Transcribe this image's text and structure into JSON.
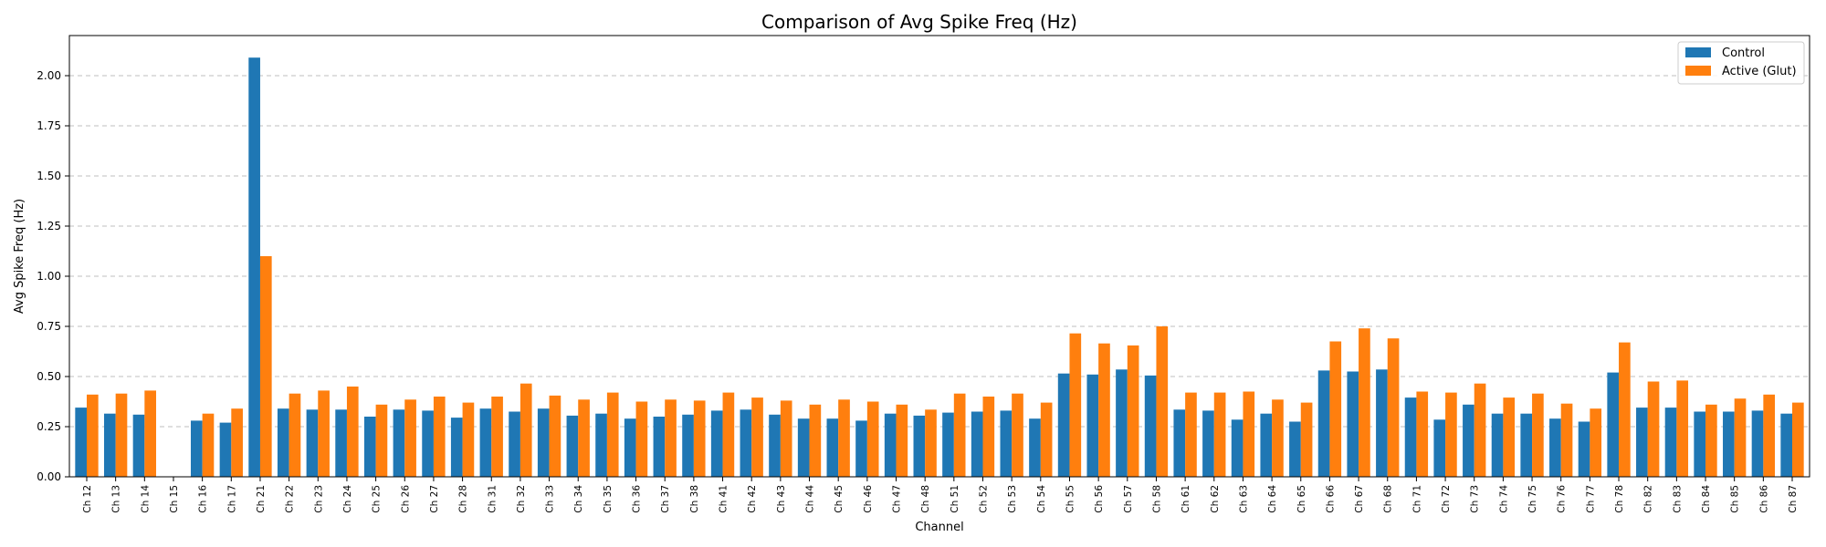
{
  "chart_data": {
    "type": "bar",
    "title": "Comparison of Avg Spike Freq (Hz)",
    "xlabel": "Channel",
    "ylabel": "Avg Spike Freq (Hz)",
    "ylim": [
      0,
      2.2
    ],
    "yticks": [
      0.0,
      0.25,
      0.5,
      0.75,
      1.0,
      1.25,
      1.5,
      1.75,
      2.0
    ],
    "ytick_labels": [
      "0.00",
      "0.25",
      "0.50",
      "0.75",
      "1.00",
      "1.25",
      "1.50",
      "1.75",
      "2.00"
    ],
    "grid": "y-dashed",
    "legend_position": "top-right",
    "categories": [
      "Ch 12",
      "Ch 13",
      "Ch 14",
      "Ch 15",
      "Ch 16",
      "Ch 17",
      "Ch 21",
      "Ch 22",
      "Ch 23",
      "Ch 24",
      "Ch 25",
      "Ch 26",
      "Ch 27",
      "Ch 28",
      "Ch 31",
      "Ch 32",
      "Ch 33",
      "Ch 34",
      "Ch 35",
      "Ch 36",
      "Ch 37",
      "Ch 38",
      "Ch 41",
      "Ch 42",
      "Ch 43",
      "Ch 44",
      "Ch 45",
      "Ch 46",
      "Ch 47",
      "Ch 48",
      "Ch 51",
      "Ch 52",
      "Ch 53",
      "Ch 54",
      "Ch 55",
      "Ch 56",
      "Ch 57",
      "Ch 58",
      "Ch 61",
      "Ch 62",
      "Ch 63",
      "Ch 64",
      "Ch 65",
      "Ch 66",
      "Ch 67",
      "Ch 68",
      "Ch 71",
      "Ch 72",
      "Ch 73",
      "Ch 74",
      "Ch 75",
      "Ch 76",
      "Ch 77",
      "Ch 78",
      "Ch 82",
      "Ch 83",
      "Ch 84",
      "Ch 85",
      "Ch 86",
      "Ch 87"
    ],
    "series": [
      {
        "name": "Control",
        "color": "#1f77b4",
        "values": [
          0.345,
          0.315,
          0.31,
          0.0,
          0.28,
          0.27,
          2.09,
          0.34,
          0.335,
          0.335,
          0.3,
          0.335,
          0.33,
          0.295,
          0.34,
          0.325,
          0.34,
          0.305,
          0.315,
          0.29,
          0.3,
          0.31,
          0.33,
          0.335,
          0.31,
          0.29,
          0.29,
          0.28,
          0.315,
          0.305,
          0.32,
          0.325,
          0.33,
          0.29,
          0.515,
          0.51,
          0.535,
          0.505,
          0.335,
          0.33,
          0.285,
          0.315,
          0.275,
          0.53,
          0.525,
          0.535,
          0.395,
          0.285,
          0.36,
          0.315,
          0.315,
          0.29,
          0.275,
          0.52,
          0.345,
          0.345,
          0.325,
          0.325,
          0.33,
          0.315
        ]
      },
      {
        "name": "Active (Glut)",
        "color": "#ff7f0e",
        "values": [
          0.41,
          0.415,
          0.43,
          0.0,
          0.315,
          0.34,
          1.1,
          0.415,
          0.43,
          0.45,
          0.36,
          0.385,
          0.4,
          0.37,
          0.4,
          0.465,
          0.405,
          0.385,
          0.42,
          0.375,
          0.385,
          0.38,
          0.42,
          0.395,
          0.38,
          0.36,
          0.385,
          0.375,
          0.36,
          0.335,
          0.415,
          0.4,
          0.415,
          0.37,
          0.715,
          0.665,
          0.655,
          0.75,
          0.42,
          0.42,
          0.425,
          0.385,
          0.37,
          0.675,
          0.74,
          0.69,
          0.425,
          0.42,
          0.465,
          0.395,
          0.415,
          0.365,
          0.34,
          0.67,
          0.475,
          0.48,
          0.36,
          0.39,
          0.41,
          0.37
        ]
      }
    ]
  }
}
